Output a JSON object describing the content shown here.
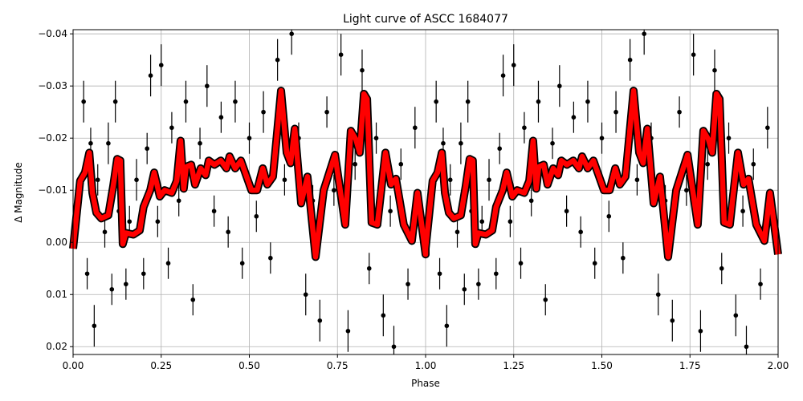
{
  "chart_data": {
    "type": "line",
    "title": "Light curve of ASCC 1684077",
    "xlabel": "Phase",
    "ylabel": "Δ Magnitude",
    "xlim": [
      0,
      2
    ],
    "ylim": [
      0.0215,
      -0.0408
    ],
    "y_inverted": true,
    "grid": true,
    "repeated_cycles": 2,
    "xticks": [
      "0.00",
      "0.25",
      "0.50",
      "0.75",
      "1.00",
      "1.25",
      "1.50",
      "1.75",
      "2.00"
    ],
    "xtick_values": [
      0,
      0.25,
      0.5,
      0.75,
      1,
      1.25,
      1.5,
      1.75,
      2
    ],
    "yticks": [
      "−0.04",
      "−0.03",
      "−0.02",
      "−0.01",
      "0.00",
      "0.01",
      "0.02"
    ],
    "ytick_values": [
      -0.04,
      -0.03,
      -0.02,
      -0.01,
      0,
      0.01,
      0.02
    ],
    "colors": {
      "points": "#000000",
      "curve": "#ff0000",
      "curve_edge": "#000000",
      "grid": "#b0b0b0"
    },
    "points": [
      [
        0.01,
        -0.003,
        0.003
      ],
      [
        0.03,
        -0.027,
        0.004
      ],
      [
        0.04,
        0.006,
        0.003
      ],
      [
        0.05,
        -0.019,
        0.003
      ],
      [
        0.06,
        0.016,
        0.004
      ],
      [
        0.07,
        -0.012,
        0.003
      ],
      [
        0.09,
        -0.002,
        0.003
      ],
      [
        0.1,
        -0.019,
        0.004
      ],
      [
        0.11,
        0.009,
        0.003
      ],
      [
        0.12,
        -0.027,
        0.004
      ],
      [
        0.13,
        -0.006,
        0.003
      ],
      [
        0.15,
        0.008,
        0.003
      ],
      [
        0.16,
        -0.004,
        0.003
      ],
      [
        0.18,
        -0.012,
        0.004
      ],
      [
        0.2,
        0.006,
        0.003
      ],
      [
        0.21,
        -0.018,
        0.003
      ],
      [
        0.22,
        -0.032,
        0.004
      ],
      [
        0.24,
        -0.004,
        0.003
      ],
      [
        0.25,
        -0.034,
        0.004
      ],
      [
        0.27,
        0.004,
        0.003
      ],
      [
        0.28,
        -0.022,
        0.003
      ],
      [
        0.3,
        -0.008,
        0.003
      ],
      [
        0.32,
        -0.027,
        0.004
      ],
      [
        0.34,
        0.011,
        0.003
      ],
      [
        0.36,
        -0.019,
        0.003
      ],
      [
        0.38,
        -0.03,
        0.004
      ],
      [
        0.4,
        -0.006,
        0.003
      ],
      [
        0.42,
        -0.024,
        0.003
      ],
      [
        0.44,
        -0.002,
        0.003
      ],
      [
        0.46,
        -0.027,
        0.004
      ],
      [
        0.48,
        0.004,
        0.003
      ],
      [
        0.5,
        -0.02,
        0.003
      ],
      [
        0.52,
        -0.005,
        0.003
      ],
      [
        0.54,
        -0.025,
        0.004
      ],
      [
        0.56,
        0.003,
        0.003
      ],
      [
        0.58,
        -0.035,
        0.004
      ],
      [
        0.6,
        -0.012,
        0.003
      ],
      [
        0.62,
        -0.04,
        0.004
      ],
      [
        0.64,
        -0.02,
        0.003
      ],
      [
        0.66,
        0.01,
        0.004
      ],
      [
        0.68,
        -0.008,
        0.003
      ],
      [
        0.7,
        0.015,
        0.004
      ],
      [
        0.72,
        -0.025,
        0.003
      ],
      [
        0.74,
        -0.01,
        0.003
      ],
      [
        0.76,
        -0.036,
        0.004
      ],
      [
        0.78,
        0.017,
        0.004
      ],
      [
        0.8,
        -0.015,
        0.003
      ],
      [
        0.82,
        -0.033,
        0.004
      ],
      [
        0.84,
        0.005,
        0.003
      ],
      [
        0.86,
        -0.02,
        0.003
      ],
      [
        0.88,
        0.014,
        0.004
      ],
      [
        0.9,
        -0.006,
        0.003
      ],
      [
        0.91,
        0.02,
        0.004
      ],
      [
        0.93,
        -0.015,
        0.003
      ],
      [
        0.95,
        0.008,
        0.003
      ],
      [
        0.97,
        -0.022,
        0.004
      ],
      [
        0.99,
        -0.004,
        0.003
      ]
    ],
    "curve": [
      [
        0.0,
        0.0012
      ],
      [
        0.02,
        -0.0118
      ],
      [
        0.034,
        -0.0134
      ],
      [
        0.046,
        -0.0172
      ],
      [
        0.055,
        -0.0095
      ],
      [
        0.066,
        -0.0057
      ],
      [
        0.08,
        -0.0046
      ],
      [
        0.1,
        -0.0052
      ],
      [
        0.114,
        -0.0108
      ],
      [
        0.125,
        -0.016
      ],
      [
        0.134,
        -0.0157
      ],
      [
        0.141,
        0.0003
      ],
      [
        0.15,
        -0.0018
      ],
      [
        0.171,
        -0.0015
      ],
      [
        0.189,
        -0.0023
      ],
      [
        0.2,
        -0.0068
      ],
      [
        0.219,
        -0.01
      ],
      [
        0.23,
        -0.0134
      ],
      [
        0.246,
        -0.0088
      ],
      [
        0.26,
        -0.01
      ],
      [
        0.28,
        -0.0095
      ],
      [
        0.294,
        -0.0118
      ],
      [
        0.305,
        -0.0195
      ],
      [
        0.314,
        -0.0103
      ],
      [
        0.321,
        -0.0145
      ],
      [
        0.335,
        -0.0149
      ],
      [
        0.346,
        -0.0111
      ],
      [
        0.362,
        -0.0142
      ],
      [
        0.376,
        -0.0129
      ],
      [
        0.385,
        -0.0157
      ],
      [
        0.401,
        -0.0149
      ],
      [
        0.419,
        -0.0157
      ],
      [
        0.435,
        -0.0142
      ],
      [
        0.444,
        -0.0165
      ],
      [
        0.46,
        -0.0142
      ],
      [
        0.476,
        -0.0157
      ],
      [
        0.506,
        -0.01
      ],
      [
        0.522,
        -0.01
      ],
      [
        0.538,
        -0.0142
      ],
      [
        0.551,
        -0.0111
      ],
      [
        0.567,
        -0.0126
      ],
      [
        0.59,
        -0.0291
      ],
      [
        0.606,
        -0.0172
      ],
      [
        0.617,
        -0.0152
      ],
      [
        0.629,
        -0.0218
      ],
      [
        0.647,
        -0.0075
      ],
      [
        0.665,
        -0.0126
      ],
      [
        0.688,
        0.0028
      ],
      [
        0.711,
        -0.01
      ],
      [
        0.743,
        -0.0168
      ],
      [
        0.772,
        -0.0034
      ],
      [
        0.788,
        -0.0214
      ],
      [
        0.802,
        -0.0198
      ],
      [
        0.813,
        -0.0172
      ],
      [
        0.825,
        -0.0285
      ],
      [
        0.834,
        -0.0275
      ],
      [
        0.847,
        -0.0038
      ],
      [
        0.863,
        -0.0034
      ],
      [
        0.886,
        -0.0172
      ],
      [
        0.902,
        -0.0111
      ],
      [
        0.916,
        -0.0122
      ],
      [
        0.938,
        -0.0034
      ],
      [
        0.961,
        -0.0003
      ],
      [
        0.977,
        -0.0095
      ],
      [
        1.0,
        0.0023
      ]
    ]
  }
}
